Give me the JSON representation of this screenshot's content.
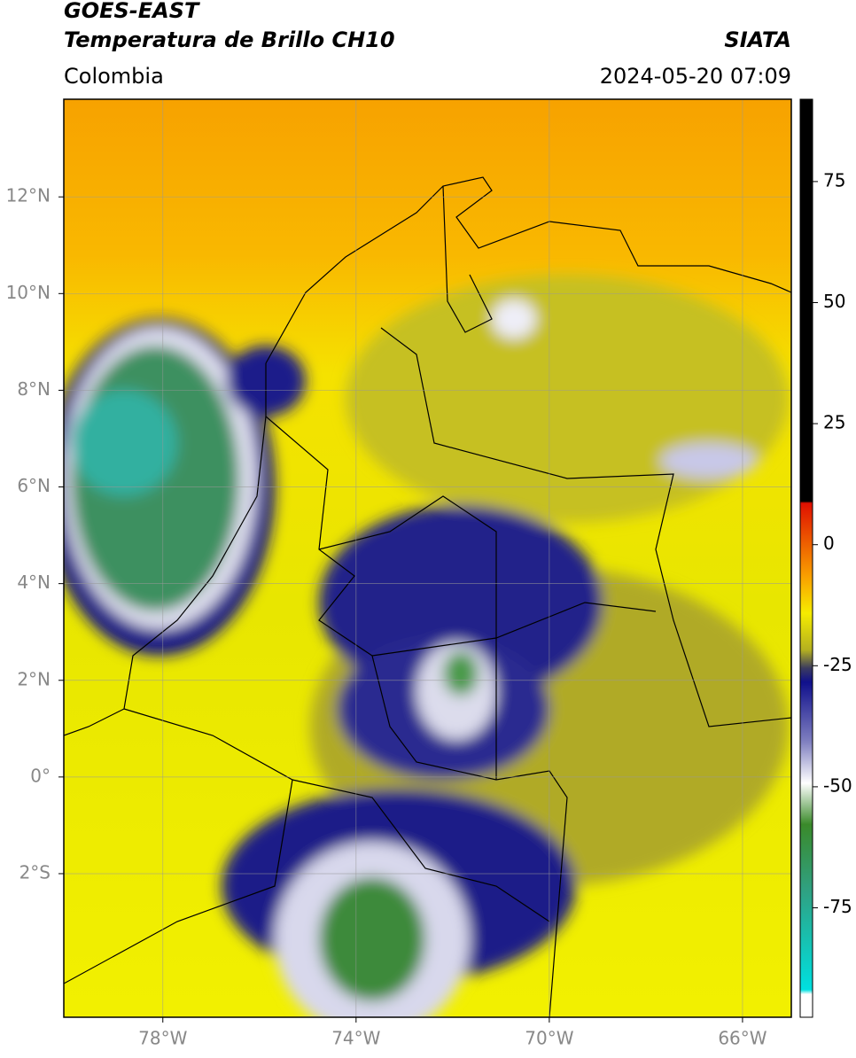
{
  "header": {
    "source": "GOES-EAST",
    "product": "Temperatura de Brillo CH10",
    "agency": "SIATA",
    "region": "Colombia",
    "datetime": "2024-05-20 07:09"
  },
  "map": {
    "lonlim": [
      -80.05,
      -64.99
    ],
    "latlim": [
      -4.97,
      14.02
    ],
    "lon_ticks": [
      {
        "value": -78,
        "label": "78°W"
      },
      {
        "value": -74,
        "label": "74°W"
      },
      {
        "value": -70,
        "label": "70°W"
      },
      {
        "value": -66,
        "label": "66°W"
      }
    ],
    "lat_ticks": [
      {
        "value": 12,
        "label": "12°N"
      },
      {
        "value": 10,
        "label": "10°N"
      },
      {
        "value": 8,
        "label": "8°N"
      },
      {
        "value": 6,
        "label": "6°N"
      },
      {
        "value": 4,
        "label": "4°N"
      },
      {
        "value": 2,
        "label": "2°N"
      },
      {
        "value": 0,
        "label": "0°"
      },
      {
        "value": -2,
        "label": "2°S"
      }
    ]
  },
  "colorbar": {
    "lim": [
      -97.6,
      92
    ],
    "ticks": [
      75,
      50,
      25,
      0,
      -25,
      -50,
      -75
    ]
  }
}
